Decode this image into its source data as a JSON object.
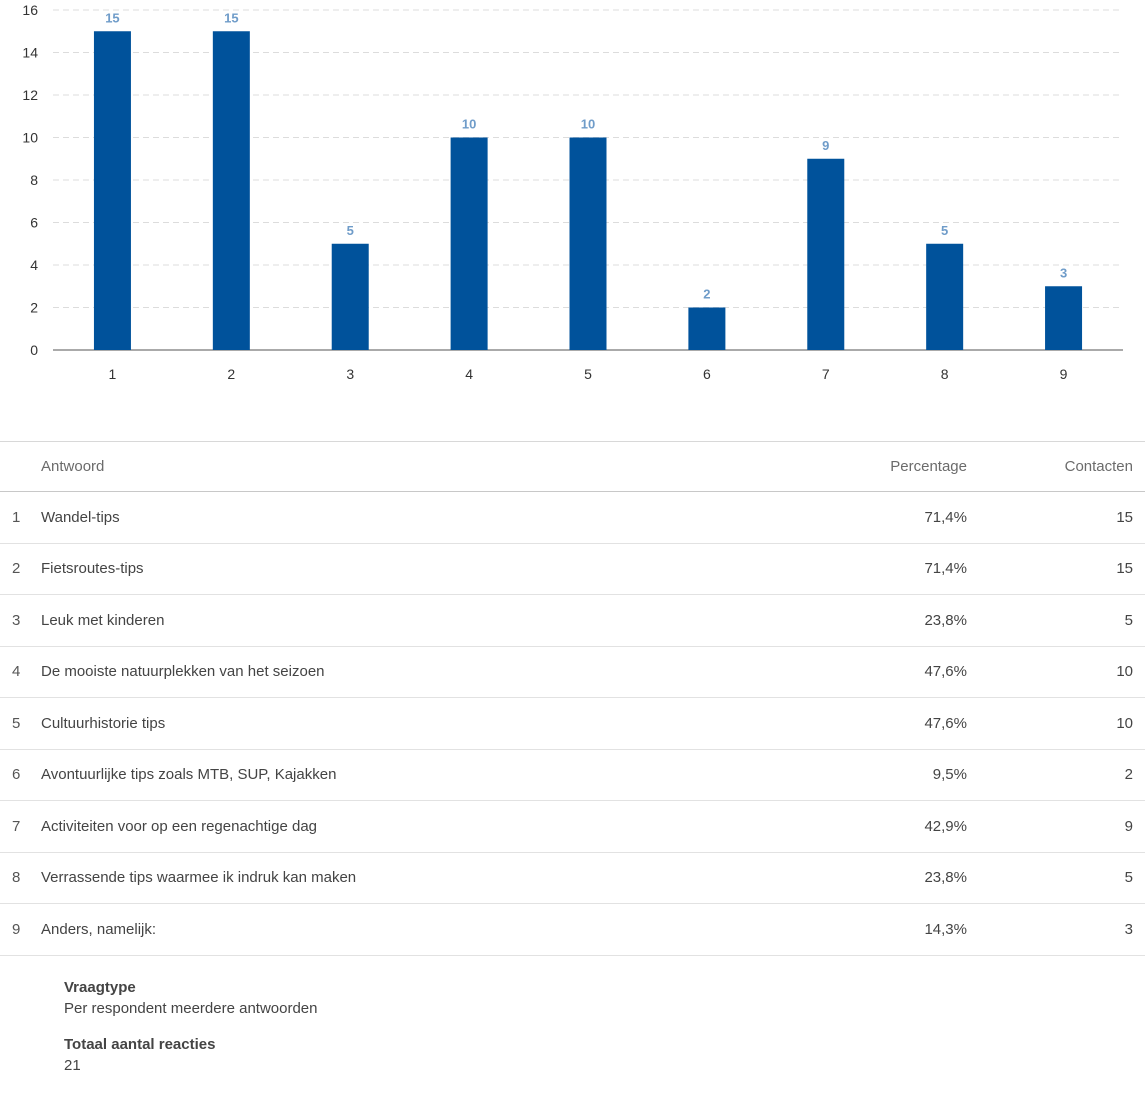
{
  "chart_data": {
    "type": "bar",
    "categories": [
      "1",
      "2",
      "3",
      "4",
      "5",
      "6",
      "7",
      "8",
      "9"
    ],
    "values": [
      15,
      15,
      5,
      10,
      10,
      2,
      9,
      5,
      3
    ],
    "ylim": [
      0,
      16
    ],
    "yticks": [
      0,
      2,
      4,
      6,
      8,
      10,
      12,
      14,
      16
    ],
    "grid": true,
    "bar_color": "#00529b",
    "label_color": "#6f9cc9"
  },
  "table": {
    "headers": {
      "answer": "Antwoord",
      "percentage": "Percentage",
      "contacts": "Contacten"
    },
    "rows": [
      {
        "num": "1",
        "answer": "Wandel-tips",
        "pct": "71,4%",
        "count": "15"
      },
      {
        "num": "2",
        "answer": "Fietsroutes-tips",
        "pct": "71,4%",
        "count": "15"
      },
      {
        "num": "3",
        "answer": "Leuk met kinderen",
        "pct": "23,8%",
        "count": "5"
      },
      {
        "num": "4",
        "answer": "De mooiste natuurplekken van het seizoen",
        "pct": "47,6%",
        "count": "10"
      },
      {
        "num": "5",
        "answer": "Cultuurhistorie tips",
        "pct": "47,6%",
        "count": "10"
      },
      {
        "num": "6",
        "answer": "Avontuurlijke tips zoals MTB, SUP, Kajakken",
        "pct": "9,5%",
        "count": "2"
      },
      {
        "num": "7",
        "answer": "Activiteiten voor op een regenachtige dag",
        "pct": "42,9%",
        "count": "9"
      },
      {
        "num": "8",
        "answer": "Verrassende tips waarmee ik indruk kan maken",
        "pct": "23,8%",
        "count": "5"
      },
      {
        "num": "9",
        "answer": "Anders, namelijk:",
        "pct": "14,3%",
        "count": "3"
      }
    ]
  },
  "meta": {
    "question_type_label": "Vraagtype",
    "question_type_value": "Per respondent meerdere antwoorden",
    "total_label": "Totaal aantal reacties",
    "total_value": "21"
  }
}
